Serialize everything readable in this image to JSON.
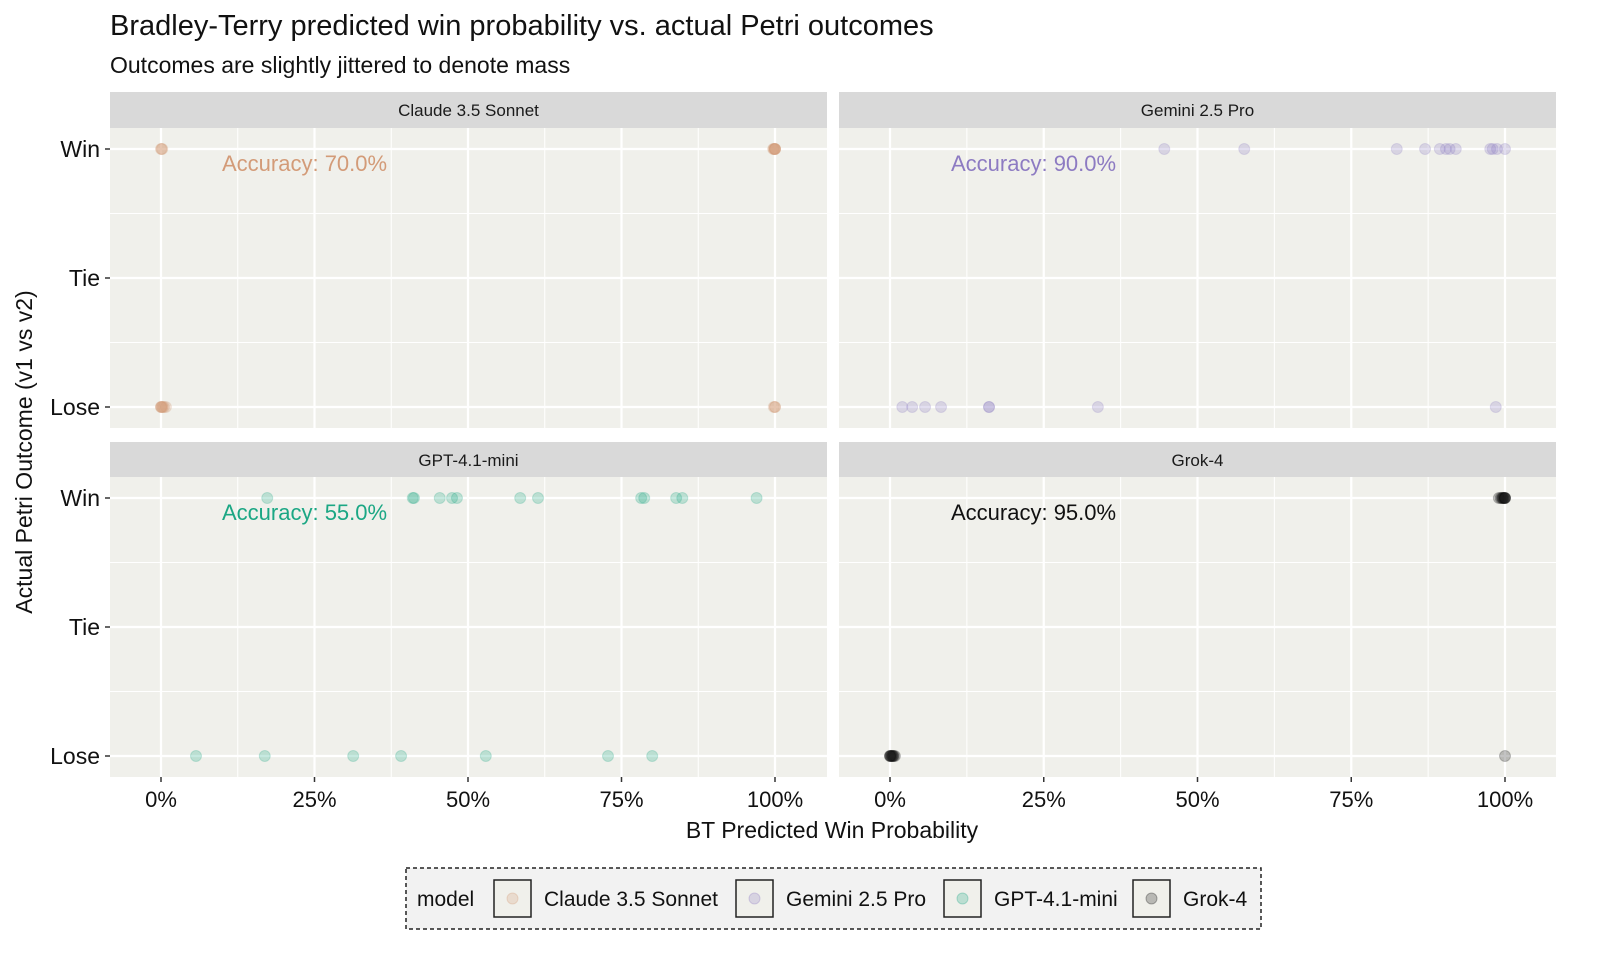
{
  "chart_data": {
    "type": "scatter",
    "title": "Bradley-Terry predicted win probability vs. actual Petri outcomes",
    "subtitle": "Outcomes are slightly jittered to denote mass",
    "xlabel": "BT Predicted Win Probability",
    "ylabel": "Actual Petri Outcome (v1 vs v2)",
    "xlim": [
      0,
      100
    ],
    "x_ticks": [
      "0%",
      "25%",
      "50%",
      "75%",
      "100%"
    ],
    "y_ticks": [
      "Lose",
      "Tie",
      "Win"
    ],
    "grid": true,
    "legend": {
      "title": "model",
      "placement": "bottom",
      "entries": [
        "Claude 3.5 Sonnet",
        "Gemini 2.5 Pro",
        "GPT-4.1-mini",
        "Grok-4"
      ]
    },
    "facets": [
      {
        "name": "Claude 3.5 Sonnet",
        "color": "#D39B78",
        "accuracy_label": "Accuracy: 70.0%",
        "win": [
          0,
          0.1,
          0.2,
          99.7,
          99.8,
          99.9,
          100,
          100,
          100,
          100
        ],
        "lose": [
          0,
          0,
          0.1,
          0.2,
          0.3,
          0.5,
          0.8,
          99.8,
          100,
          100
        ]
      },
      {
        "name": "Gemini 2.5 Pro",
        "color": "#8D7BC2",
        "accuracy_label": "Accuracy: 90.0%",
        "win": [
          44.6,
          57.6,
          82.4,
          87,
          89.4,
          90.4,
          91,
          92,
          97.6,
          98,
          98.7,
          100
        ],
        "lose": [
          2,
          3.6,
          5.7,
          8.3,
          16.1,
          16.1,
          33.8,
          98.5
        ]
      },
      {
        "name": "GPT-4.1-mini",
        "color": "#1BA784",
        "accuracy_label": "Accuracy: 55.0%",
        "win": [
          17.3,
          41,
          41.2,
          45.4,
          47.4,
          48.2,
          58.5,
          61.4,
          78.2,
          78.7,
          83.9,
          84.9,
          97
        ],
        "lose": [
          5.7,
          16.9,
          31.3,
          39.1,
          52.9,
          72.8,
          80
        ]
      },
      {
        "name": "Grok-4",
        "color": "#111111",
        "accuracy_label": "Accuracy: 95.0%",
        "win": [
          99,
          99.3,
          99.5,
          99.6,
          99.7,
          99.8,
          99.9,
          100,
          100,
          100
        ],
        "lose": [
          0,
          0,
          0.1,
          0.2,
          0.3,
          0.4,
          0.5,
          0.6,
          0.8,
          100
        ]
      }
    ]
  }
}
